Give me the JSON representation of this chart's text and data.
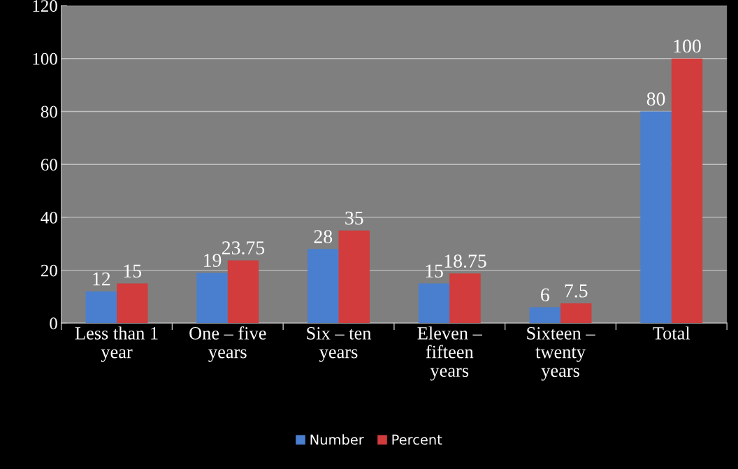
{
  "chart_data": {
    "type": "bar",
    "categories": [
      "Less than 1\nyear",
      "One – five\nyears",
      "Six – ten\nyears",
      "Eleven –\nfifteen\nyears",
      "Sixteen –\ntwenty\nyears",
      "Total"
    ],
    "series": [
      {
        "name": "Number",
        "color": "#4a7fd0",
        "values": [
          12,
          19,
          28,
          15,
          6,
          80
        ]
      },
      {
        "name": "Percent",
        "color": "#d23c3c",
        "values": [
          15,
          23.75,
          35,
          18.75,
          7.5,
          100
        ]
      }
    ],
    "ylim": [
      0,
      120
    ],
    "yticks": [
      0,
      20,
      40,
      60,
      80,
      100,
      120
    ],
    "grid": "y",
    "legend": "bottom",
    "data_labels": true
  }
}
